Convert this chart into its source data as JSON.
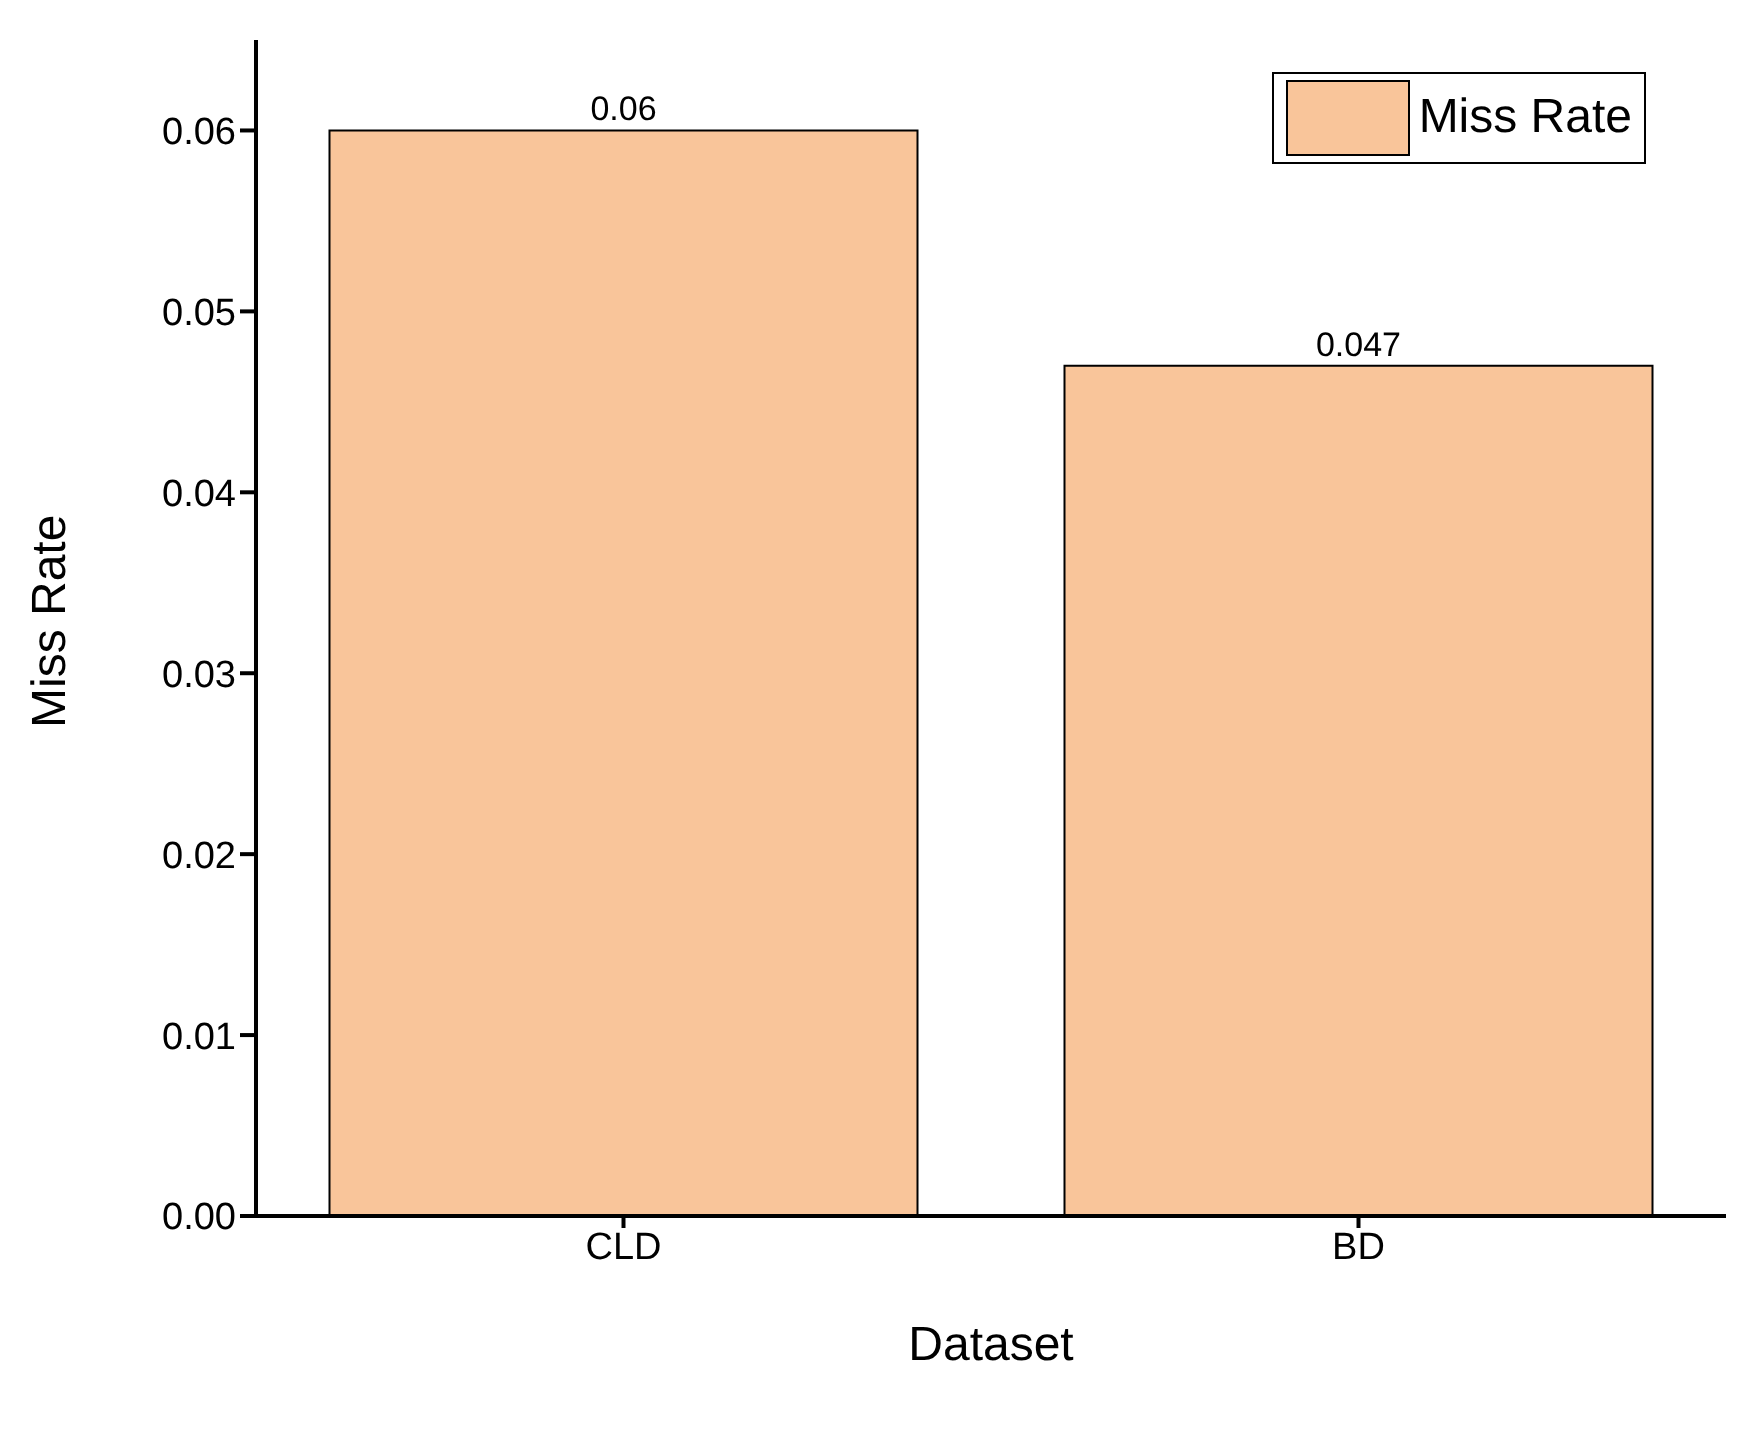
{
  "chart_data": {
    "type": "bar",
    "xlabel": "Dataset",
    "ylabel": "Miss Rate",
    "categories": [
      "CLD",
      "BD"
    ],
    "series": [
      {
        "name": "Miss Rate",
        "color": "#f9c59a",
        "values": [
          0.06,
          0.047
        ]
      }
    ],
    "ylim": [
      0,
      0.065
    ],
    "yticks": [
      {
        "value": 0,
        "label": "0.00"
      },
      {
        "value": 0.01,
        "label": "0.01"
      },
      {
        "value": 0.02,
        "label": "0.02"
      },
      {
        "value": 0.03,
        "label": "0.03"
      },
      {
        "value": 0.04,
        "label": "0.04"
      },
      {
        "value": 0.05,
        "label": "0.05"
      },
      {
        "value": 0.06,
        "label": "0.06"
      }
    ],
    "data_labels": true,
    "legend": "top right",
    "grid": false
  }
}
